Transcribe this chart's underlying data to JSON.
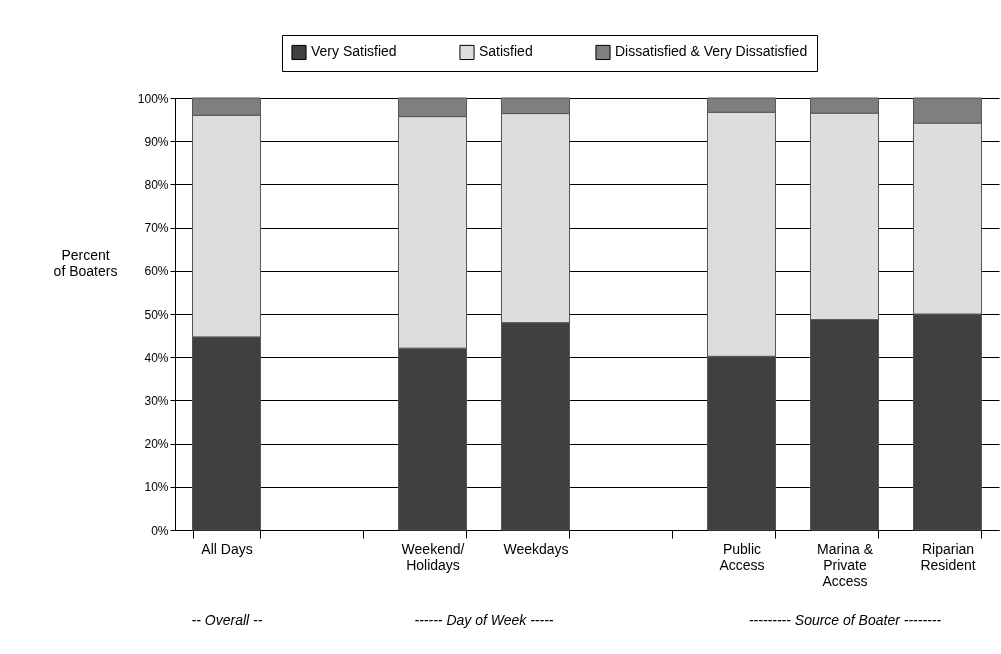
{
  "chart_data": {
    "type": "bar",
    "stacked": true,
    "ylabel": "Percent of Boaters",
    "categories": [
      "All Days",
      null,
      "Weekend/ Holidays",
      "Weekdays",
      null,
      "Public Access",
      "Marina & Private Access",
      "Riparian Resident"
    ],
    "series": [
      {
        "name": "Very Satisfied",
        "color": "#404040",
        "values": [
          44.7,
          null,
          42.1,
          48.0,
          null,
          40.2,
          48.7,
          50.0
        ]
      },
      {
        "name": "Satisfied",
        "color": "#dddddd",
        "values": [
          51.3,
          null,
          53.6,
          48.4,
          null,
          56.5,
          47.8,
          44.2
        ]
      },
      {
        "name": "Dissatisfied & Very Dissatisfied",
        "color": "#7f7f7f",
        "values": [
          4.0,
          null,
          4.3,
          3.6,
          null,
          3.3,
          3.5,
          5.8
        ]
      }
    ],
    "ylim": [
      0,
      100
    ],
    "yticks": [
      {
        "value": 0,
        "label": "0%"
      },
      {
        "value": 10,
        "label": "10%"
      },
      {
        "value": 20,
        "label": "20%"
      },
      {
        "value": 30,
        "label": "30%"
      },
      {
        "value": 40,
        "label": "40%"
      },
      {
        "value": 50,
        "label": "50%"
      },
      {
        "value": 60,
        "label": "60%"
      },
      {
        "value": 70,
        "label": "70%"
      },
      {
        "value": 80,
        "label": "80%"
      },
      {
        "value": 90,
        "label": "90%"
      },
      {
        "value": 100,
        "label": "100%"
      }
    ],
    "grid": "y",
    "legend": "top",
    "annotations": [
      "-- Overall --",
      "------ Day of Week -----",
      "--------- Source of Boater --------"
    ]
  }
}
